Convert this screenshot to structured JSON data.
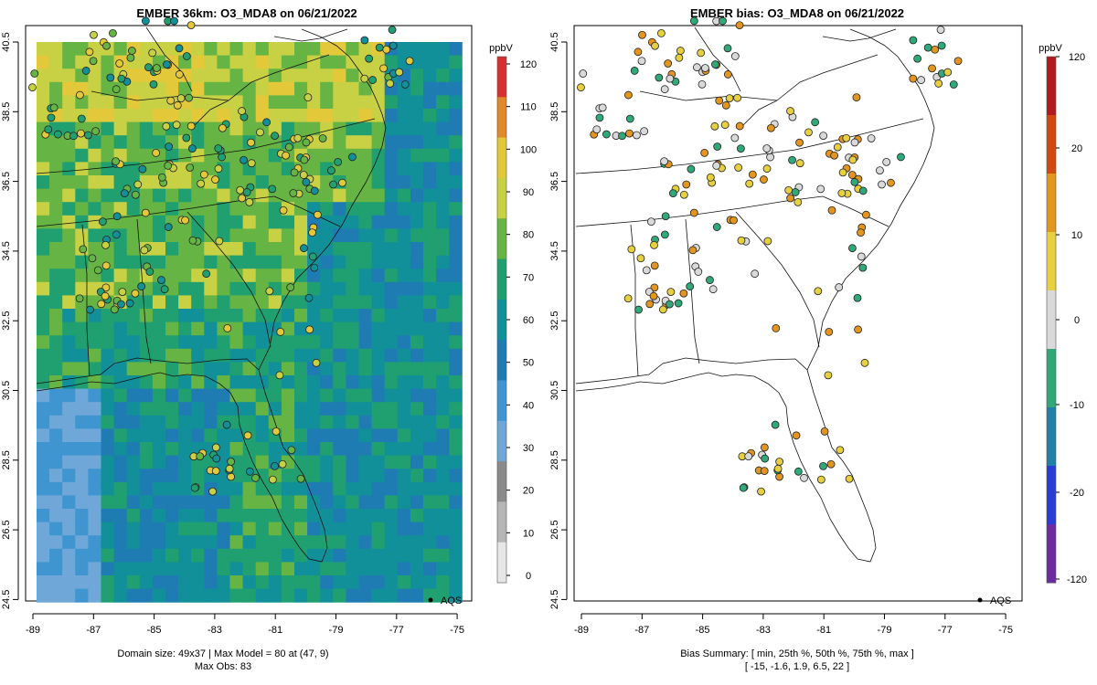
{
  "panels": [
    {
      "title": "EMBER 36km: O3_MDA8 on 06/21/2022",
      "colorbar": {
        "unit": "ppbV",
        "ticks": [
          "0",
          "10",
          "20",
          "30",
          "40",
          "50",
          "60",
          "70",
          "80",
          "90",
          "100",
          "110",
          "120"
        ]
      },
      "legend_label": "AQS",
      "footer_line1": "Domain size: 49x37 | Max Model = 80 at (47, 9)",
      "footer_line2": "Max Obs: 83"
    },
    {
      "title": "EMBER bias: O3_MDA8 on 06/21/2022",
      "colorbar": {
        "unit": "ppbV",
        "ticks": [
          "120",
          "20",
          "10",
          "0",
          "-10",
          "-20",
          "-120"
        ]
      },
      "legend_label": "AQS",
      "footer_line1": "Bias Summary: [ min, 25th %, 50th %, 75th %, max ]",
      "footer_line2": "[ -15,   -1.6,   1.9,   6.5,   22 ]"
    }
  ],
  "axes": {
    "x_ticks": [
      "-89",
      "-87",
      "-85",
      "-83",
      "-81",
      "-79",
      "-77",
      "-75"
    ],
    "y_ticks": [
      "40.5",
      "38.5",
      "36.5",
      "34.5",
      "32.5",
      "30.5",
      "28.5",
      "26.5",
      "24.5"
    ],
    "lon_range": [
      -89.2,
      -74.8
    ],
    "lat_range": [
      24.4,
      40.7
    ]
  },
  "colors": {
    "model_scale": [
      "#e6e6e6",
      "#b5b5b5",
      "#8a8a8a",
      "#6fa8d8",
      "#3f95d0",
      "#1f7cb3",
      "#11909a",
      "#20a070",
      "#66b444",
      "#c8d044",
      "#e3c83a",
      "#df8a2a",
      "#d63030"
    ],
    "bias_scale": [
      "#6a2ca0",
      "#2a3bd6",
      "#2080a8",
      "#30a878",
      "#d9d9d9",
      "#e6d040",
      "#e2951f",
      "#d04a10",
      "#b01a20"
    ]
  }
}
